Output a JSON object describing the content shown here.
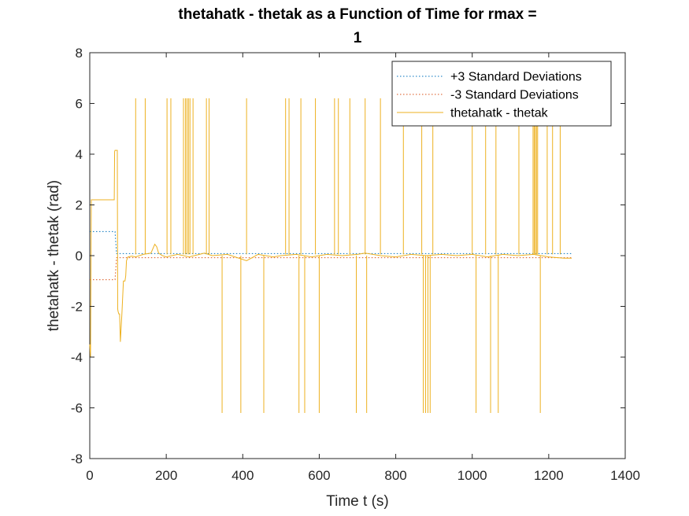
{
  "chart_data": {
    "type": "line",
    "title_line1": "thetahatk - thetak as a Function of Time for rmax =",
    "title_line2": "1",
    "xlabel": "Time t (s)",
    "ylabel": "thetahatk - thetak (rad)",
    "xlim": [
      0,
      1400
    ],
    "ylim": [
      -8,
      8
    ],
    "xticks": [
      0,
      200,
      400,
      600,
      800,
      1000,
      1200,
      1400
    ],
    "yticks": [
      -8,
      -6,
      -4,
      -2,
      0,
      2,
      4,
      6,
      8
    ],
    "grid": false,
    "legend_position": "top-right",
    "series": [
      {
        "name": "+3 Standard Deviations",
        "color": "#0072BD",
        "style": "dotted",
        "x": [
          0,
          64,
          66,
          70,
          1260
        ],
        "y": [
          0.95,
          0.95,
          0.95,
          0.08,
          0.08
        ]
      },
      {
        "name": "-3 Standard Deviations",
        "color": "#D95319",
        "style": "dotted",
        "x": [
          0,
          64,
          66,
          70,
          1260
        ],
        "y": [
          -0.95,
          -0.95,
          -0.95,
          -0.08,
          -0.08
        ]
      },
      {
        "name": "thetahatk - thetak",
        "color": "#EDB120",
        "style": "solid",
        "baseline": {
          "x": [
            0,
            2,
            4,
            6,
            64,
            65,
            66,
            72,
            73,
            74,
            76,
            78,
            80,
            84,
            88,
            92,
            94,
            96,
            100,
            110,
            120,
            140,
            160,
            170,
            175,
            180,
            190,
            200,
            230,
            260,
            300,
            320,
            360,
            390,
            410,
            440,
            480,
            500,
            540,
            580,
            620,
            660,
            700,
            720,
            760,
            800,
            840,
            880,
            920,
            960,
            1000,
            1040,
            1080,
            1120,
            1160,
            1200,
            1240,
            1260
          ],
          "y": [
            -3.5,
            -4.0,
            2.2,
            2.2,
            2.2,
            4.1,
            4.15,
            4.15,
            -2.1,
            -2.2,
            -2.3,
            -2.3,
            -3.4,
            -2.3,
            -1.0,
            -1.0,
            -0.8,
            -0.2,
            -0.05,
            -0.02,
            -0.05,
            0.05,
            0.1,
            0.45,
            0.35,
            0.1,
            0.0,
            -0.05,
            0.05,
            -0.05,
            0.1,
            0.0,
            0.05,
            -0.1,
            -0.2,
            0.05,
            -0.05,
            0.0,
            0.05,
            -0.05,
            0.05,
            0.0,
            0.05,
            0.1,
            0.0,
            -0.05,
            0.05,
            0.0,
            0.05,
            0.0,
            0.05,
            -0.05,
            0.05,
            0.0,
            0.05,
            -0.05,
            -0.1,
            -0.1
          ]
        },
        "spikes_up_x": [
          120,
          145,
          202,
          212,
          245,
          250,
          254,
          258,
          262,
          270,
          305,
          312,
          410,
          512,
          521,
          552,
          590,
          640,
          650,
          680,
          720,
          760,
          820,
          868,
          897,
          1000,
          1035,
          1062,
          1122,
          1159,
          1162,
          1165,
          1168,
          1171,
          1196,
          1210,
          1230
        ],
        "spikes_up_y": 6.2,
        "spikes_down_x": [
          346,
          395,
          455,
          547,
          562,
          600,
          697,
          724,
          872,
          878,
          884,
          890,
          1010,
          1048,
          1068,
          1178
        ],
        "spikes_down_y": -6.2
      }
    ]
  }
}
